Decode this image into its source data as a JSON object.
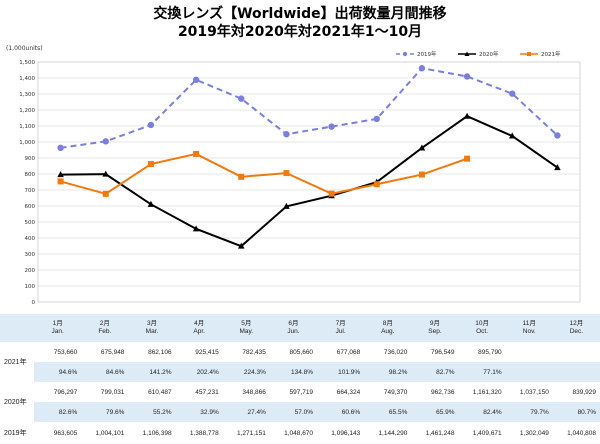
{
  "header": {
    "title_line1": "交換レンズ【Worldwide】出荷数量月間推移",
    "title_line2": "2019年対2020年対2021年1～10月",
    "unit_label": "(1,000units)"
  },
  "chart_data": {
    "type": "line",
    "title": "交換レンズ【Worldwide】出荷数量月間推移",
    "subtitle": "2019年対2020年対2021年1～10月",
    "ylabel": "(1,000units)",
    "ylim": [
      0,
      1500
    ],
    "ytick_step": 100,
    "yticks": [
      "0",
      "100",
      "200",
      "300",
      "400",
      "500",
      "600",
      "700",
      "800",
      "900",
      "1,000",
      "1,100",
      "1,200",
      "1,300",
      "1,400",
      "1,500"
    ],
    "grid": true,
    "legend_position": "top-right",
    "categories": [
      "1月",
      "2月",
      "3月",
      "4月",
      "5月",
      "6月",
      "7月",
      "8月",
      "9月",
      "10月",
      "11月",
      "12月"
    ],
    "series": [
      {
        "name": "2019年",
        "color": "#7b7fdc",
        "style": "dashed",
        "marker": "circle",
        "values": [
          963.605,
          1004.101,
          1106.398,
          1388.778,
          1271.151,
          1048.67,
          1096.143,
          1144.29,
          1461.248,
          1409.671,
          1302.049,
          1040.808
        ]
      },
      {
        "name": "2020年",
        "color": "#000000",
        "style": "solid",
        "marker": "triangle",
        "values": [
          796.297,
          799.031,
          610.487,
          457.231,
          348.866,
          597.719,
          664.324,
          749.37,
          962.736,
          1161.32,
          1037.15,
          839.929
        ]
      },
      {
        "name": "2021年",
        "color": "#f07a10",
        "style": "solid",
        "marker": "square",
        "values": [
          753.66,
          675.948,
          862.106,
          925.415,
          782.435,
          805.66,
          677.068,
          736.02,
          796.549,
          895.79,
          null,
          null
        ]
      }
    ]
  },
  "table": {
    "months": [
      {
        "ja": "1月",
        "en": "Jan."
      },
      {
        "ja": "2月",
        "en": "Feb."
      },
      {
        "ja": "3月",
        "en": "Mar."
      },
      {
        "ja": "4月",
        "en": "Apr."
      },
      {
        "ja": "5月",
        "en": "May."
      },
      {
        "ja": "6月",
        "en": "Jun."
      },
      {
        "ja": "7月",
        "en": "Jul."
      },
      {
        "ja": "8月",
        "en": "Aug."
      },
      {
        "ja": "9月",
        "en": "Sep."
      },
      {
        "ja": "10月",
        "en": "Oct."
      },
      {
        "ja": "11月",
        "en": "Nov."
      },
      {
        "ja": "12月",
        "en": "Dec."
      }
    ],
    "rows": [
      {
        "label": "2021年",
        "values": [
          "753,660",
          "675,948",
          "862,106",
          "925,415",
          "782,435",
          "805,660",
          "677,068",
          "736,020",
          "796,549",
          "895,790",
          "",
          ""
        ],
        "pcts": [
          "94.6%",
          "84.6%",
          "141.2%",
          "202.4%",
          "224.3%",
          "134.8%",
          "101.9%",
          "98.2%",
          "82.7%",
          "77.1%",
          "",
          ""
        ]
      },
      {
        "label": "2020年",
        "values": [
          "796,297",
          "799,031",
          "610,487",
          "457,231",
          "348,866",
          "597,719",
          "664,324",
          "749,370",
          "962,736",
          "1,161,320",
          "1,037,150",
          "839,929"
        ],
        "pcts": [
          "82.6%",
          "79.6%",
          "55.2%",
          "32.9%",
          "27.4%",
          "57.0%",
          "60.6%",
          "65.5%",
          "65.9%",
          "82.4%",
          "79.7%",
          "80.7%"
        ]
      },
      {
        "label": "2019年",
        "values": [
          "963,605",
          "1,004,101",
          "1,106,398",
          "1,388,778",
          "1,271,151",
          "1,048,670",
          "1,096,143",
          "1,144,290",
          "1,461,248",
          "1,409,671",
          "1,302,049",
          "1,040,808"
        ]
      }
    ]
  }
}
